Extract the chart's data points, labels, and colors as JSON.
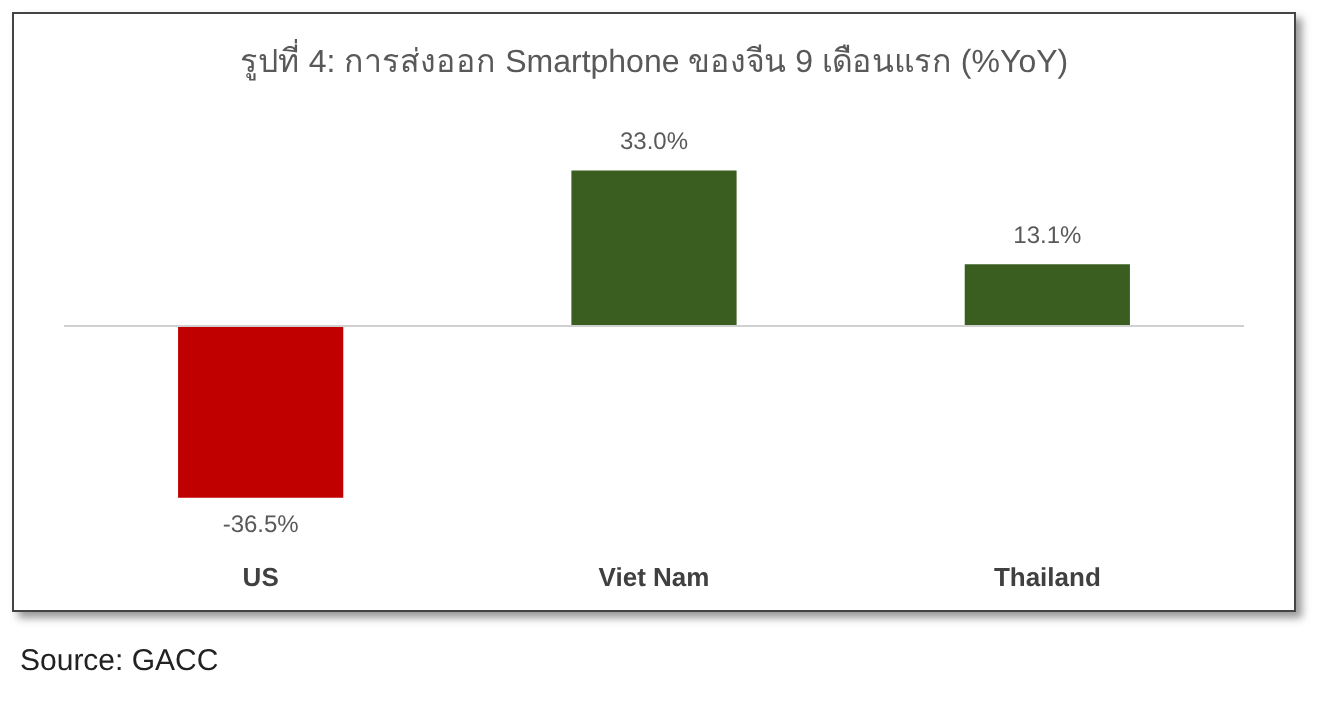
{
  "chart_data": {
    "type": "bar",
    "title": "รูปที่ 4: การส่งออก Smartphone ของจีน 9 เดือนแรก (%YoY)",
    "categories": [
      "US",
      "Viet Nam",
      "Thailand"
    ],
    "tick_labels": "x",
    "values": [
      -36.5,
      33.0,
      13.1
    ],
    "value_labels": [
      "-36.5%",
      "33.0%",
      "13.1%"
    ],
    "colors": [
      "#c00000",
      "#3a5e1f",
      "#3a5e1f"
    ],
    "legend": false,
    "annotations": [
      "Source: GACC"
    ]
  }
}
